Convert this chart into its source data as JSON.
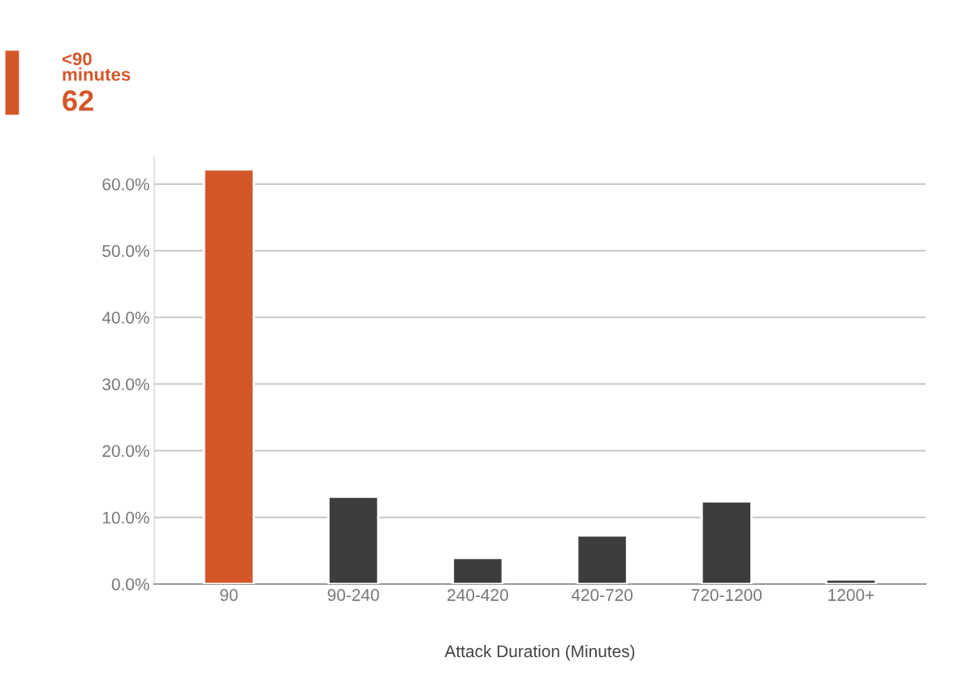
{
  "chart_data": {
    "type": "bar",
    "xlabel": "Attack Duration (Minutes)",
    "annotations": [
      "<90 minutes",
      "62"
    ],
    "categories": [
      "90",
      "90-240",
      "240-420",
      "420-720",
      "720-1200",
      "1200+"
    ],
    "values": [
      62.2,
      13.1,
      3.9,
      7.3,
      12.4,
      0.7
    ],
    "colors": [
      "#d4572a",
      "#3d3d3d",
      "#3d3d3d",
      "#3d3d3d",
      "#3d3d3d",
      "#3d3d3d"
    ],
    "ylim": [
      0,
      64
    ],
    "yticks": [
      {
        "value": 0,
        "label": "0.0%"
      },
      {
        "value": 10,
        "label": "10.0%"
      },
      {
        "value": 20,
        "label": "20.0%"
      },
      {
        "value": 30,
        "label": "30.0%"
      },
      {
        "value": 40,
        "label": "40.0%"
      },
      {
        "value": 50,
        "label": "50.0%"
      },
      {
        "value": 60,
        "label": "60.0%"
      }
    ],
    "grid": "y",
    "legend": false
  }
}
